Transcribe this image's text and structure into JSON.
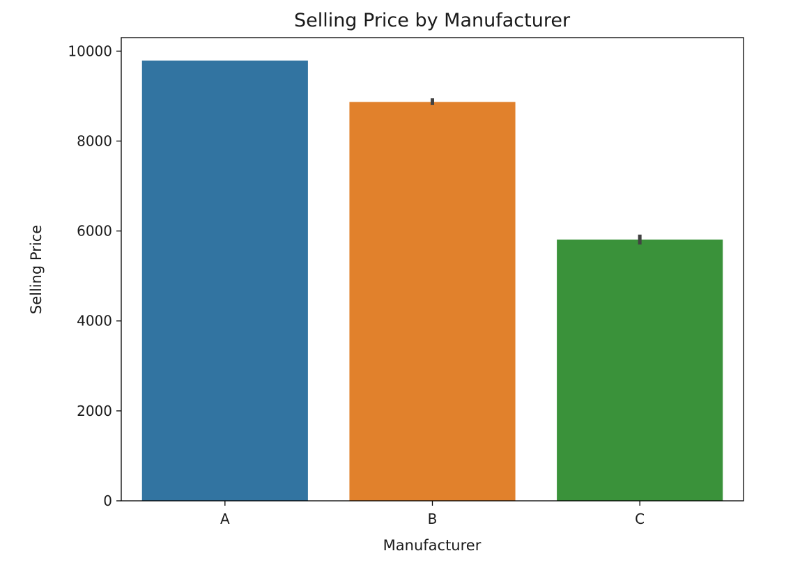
{
  "chart_data": {
    "type": "bar",
    "title": "Selling Price by Manufacturer",
    "xlabel": "Manufacturer",
    "ylabel": "Selling Price",
    "categories": [
      "A",
      "B",
      "C"
    ],
    "values": [
      9790,
      8870,
      5810
    ],
    "error_bars": [
      {
        "low": 9790,
        "high": 9790
      },
      {
        "low": 8800,
        "high": 8950
      },
      {
        "low": 5700,
        "high": 5920
      }
    ],
    "colors": [
      "#3274a1",
      "#e1812c",
      "#3a923a"
    ],
    "error_bar_color": "#424242",
    "ylim": [
      0,
      10300
    ],
    "yticks": [
      0,
      2000,
      4000,
      6000,
      8000,
      10000
    ],
    "ytick_labels": [
      "0",
      "2000",
      "4000",
      "6000",
      "8000",
      "10000"
    ],
    "grid": false,
    "legend": "none"
  }
}
